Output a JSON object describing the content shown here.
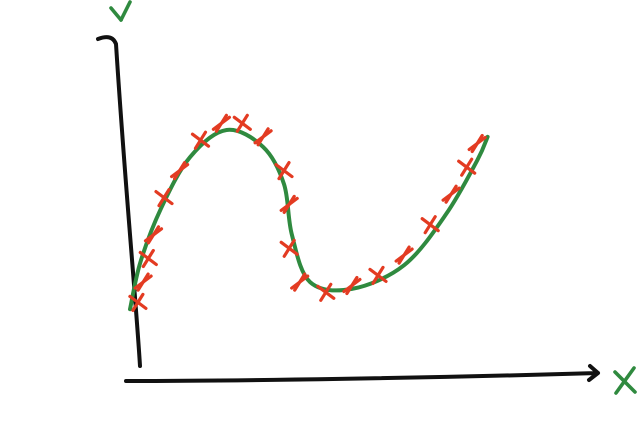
{
  "colors": {
    "axis": "#111111",
    "fit_curve": "#2f8a3f",
    "data_points": "#e33b22",
    "axis_labels": "#2f8a3f"
  },
  "chart_data": {
    "type": "scatter",
    "title": "",
    "xlabel": "x",
    "ylabel": "y",
    "grid": false,
    "legend": "none",
    "xlim": [
      0,
      10
    ],
    "ylim": [
      0,
      10
    ],
    "series": [
      {
        "points": [
          {
            "x": 1.3,
            "y": 2.0
          },
          {
            "x": 1.4,
            "y": 2.6
          },
          {
            "x": 1.5,
            "y": 3.3
          },
          {
            "x": 1.6,
            "y": 4.0
          },
          {
            "x": 1.8,
            "y": 5.1
          },
          {
            "x": 2.1,
            "y": 5.9
          },
          {
            "x": 2.5,
            "y": 6.8
          },
          {
            "x": 2.9,
            "y": 7.3
          },
          {
            "x": 3.3,
            "y": 7.3
          },
          {
            "x": 3.7,
            "y": 6.9
          },
          {
            "x": 4.1,
            "y": 5.9
          },
          {
            "x": 4.2,
            "y": 4.9
          },
          {
            "x": 4.2,
            "y": 3.6
          },
          {
            "x": 4.4,
            "y": 2.6
          },
          {
            "x": 4.9,
            "y": 2.3
          },
          {
            "x": 5.4,
            "y": 2.5
          },
          {
            "x": 5.9,
            "y": 2.8
          },
          {
            "x": 6.4,
            "y": 3.4
          },
          {
            "x": 6.9,
            "y": 4.3
          },
          {
            "x": 7.3,
            "y": 5.2
          },
          {
            "x": 7.6,
            "y": 6.0
          },
          {
            "x": 7.8,
            "y": 6.7
          }
        ]
      }
    ],
    "fit_curve": {
      "points": [
        {
          "x": 1.15,
          "y": 1.8
        },
        {
          "x": 1.35,
          "y": 3.2
        },
        {
          "x": 1.75,
          "y": 4.8
        },
        {
          "x": 2.3,
          "y": 6.3
        },
        {
          "x": 3.0,
          "y": 7.1
        },
        {
          "x": 3.7,
          "y": 6.6
        },
        {
          "x": 4.1,
          "y": 5.5
        },
        {
          "x": 4.25,
          "y": 4.0
        },
        {
          "x": 4.6,
          "y": 2.6
        },
        {
          "x": 5.4,
          "y": 2.4
        },
        {
          "x": 6.4,
          "y": 3.1
        },
        {
          "x": 7.2,
          "y": 4.6
        },
        {
          "x": 7.8,
          "y": 6.2
        },
        {
          "x": 8.0,
          "y": 6.9
        }
      ]
    }
  }
}
